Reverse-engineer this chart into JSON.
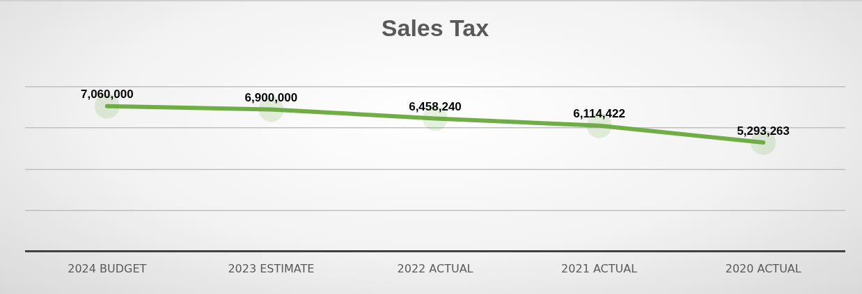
{
  "chart_data": {
    "type": "line",
    "title": "Sales Tax",
    "categories": [
      "2024 BUDGET",
      "2023 ESTIMATE",
      "2022 ACTUAL",
      "2021 ACTUAL",
      "2020 ACTUAL"
    ],
    "series": [
      {
        "color": "#70ad47",
        "values": [
          7060000,
          6900000,
          6458240,
          6114422,
          5293263
        ],
        "value_labels": [
          "7,060,000",
          "6,900,000",
          "6,458,240",
          "6,114,422",
          "5,293,263"
        ]
      }
    ],
    "ylim": [
      0,
      8000000
    ],
    "yticks": [
      {
        "value": 0,
        "label": null
      },
      {
        "value": 2000000,
        "label": null
      },
      {
        "value": 4000000,
        "label": null
      },
      {
        "value": 6000000,
        "label": null
      },
      {
        "value": 8000000,
        "label": null
      }
    ],
    "tick_labels": "x",
    "grid": "y",
    "marker": "circle",
    "line_style": "solid",
    "legend": false
  }
}
